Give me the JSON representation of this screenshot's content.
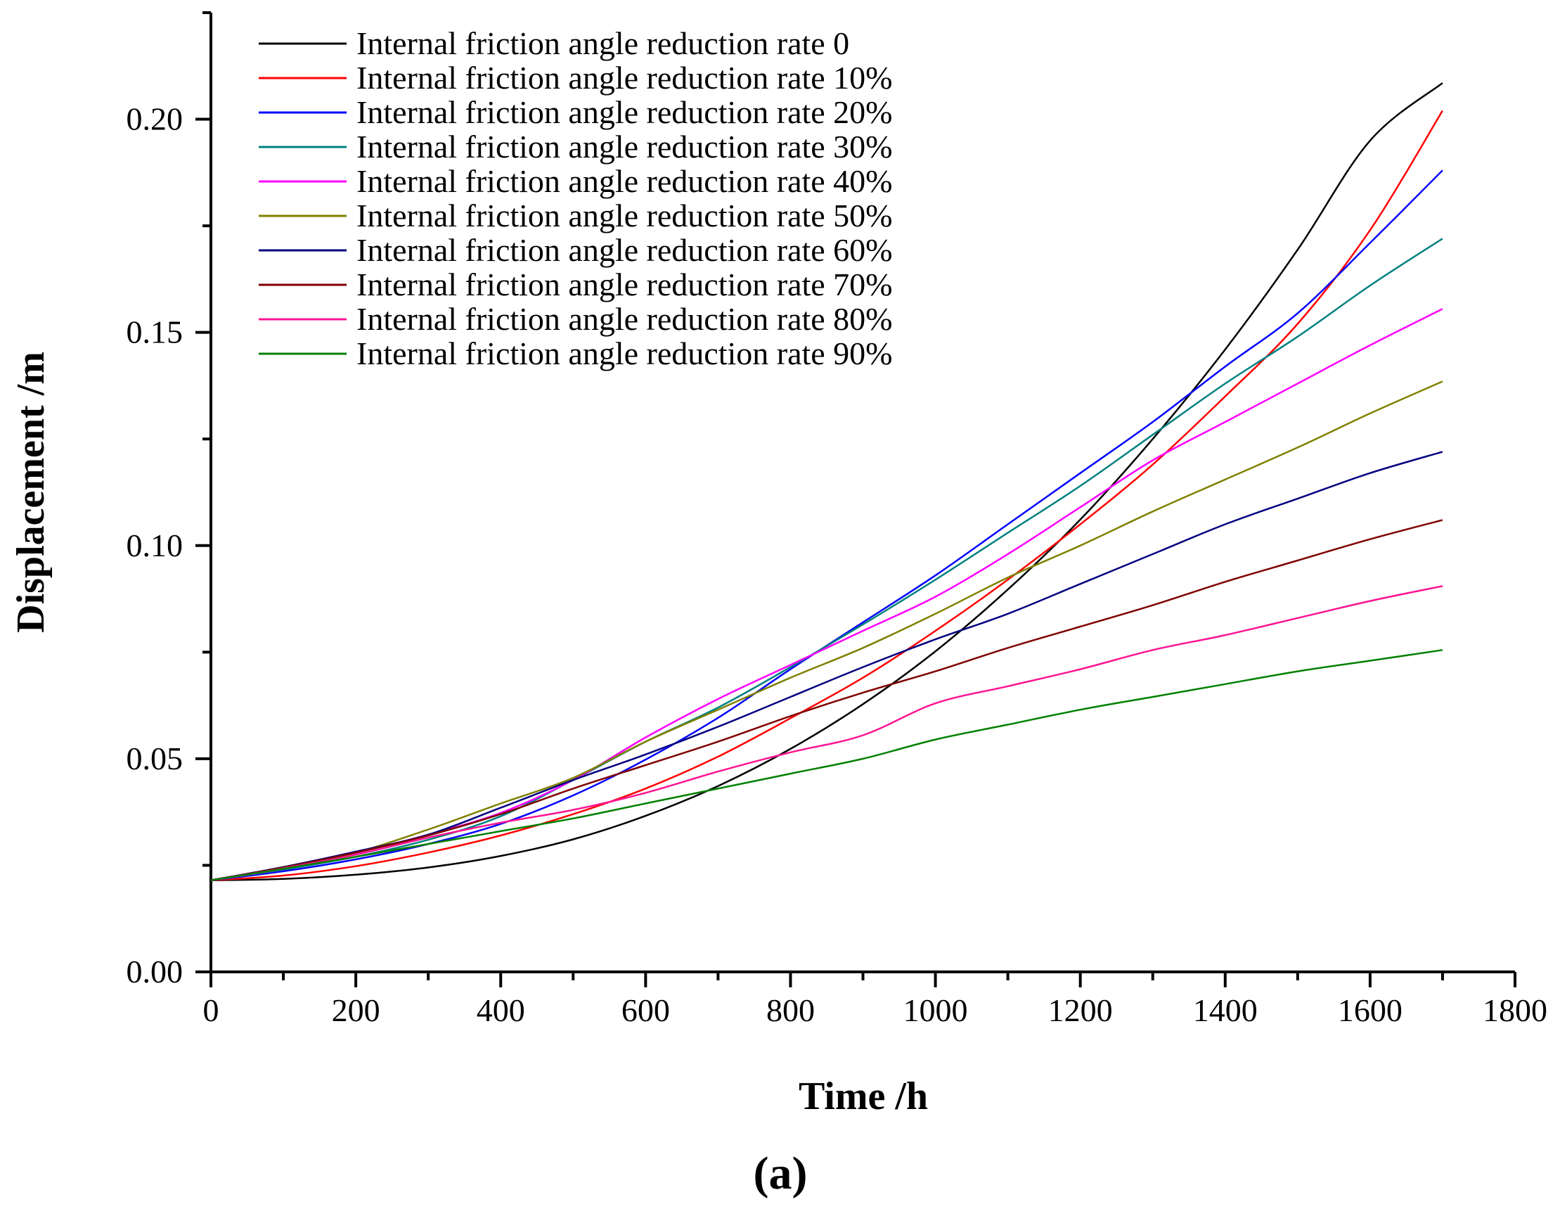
{
  "chart_data": {
    "type": "line",
    "title": "",
    "xlabel": "Time /h",
    "ylabel": "Displacement /m",
    "panel_label": "(a)",
    "xlim": [
      0,
      1800
    ],
    "ylim": [
      0,
      0.225
    ],
    "xticks": [
      0,
      200,
      400,
      600,
      800,
      1000,
      1200,
      1400,
      1600,
      1800
    ],
    "yticks": [
      0.0,
      0.05,
      0.1,
      0.15,
      0.2
    ],
    "ytick_labels": [
      "0.00",
      "0.05",
      "0.10",
      "0.15",
      "0.20"
    ],
    "legend_position": "top-left",
    "x": [
      0,
      100,
      200,
      300,
      400,
      500,
      600,
      700,
      800,
      900,
      1000,
      1100,
      1200,
      1300,
      1400,
      1500,
      1600,
      1700
    ],
    "series": [
      {
        "name": "Internal friction angle reduction rate 0",
        "color": "#000000",
        "values": [
          0.0215,
          0.0218,
          0.0228,
          0.0245,
          0.0272,
          0.0311,
          0.0366,
          0.0436,
          0.0523,
          0.0628,
          0.0752,
          0.0897,
          0.1061,
          0.125,
          0.146,
          0.1694,
          0.195,
          0.2085
        ]
      },
      {
        "name": "Internal friction angle reduction rate 10%",
        "color": "#ff0000",
        "values": [
          0.0215,
          0.0226,
          0.0248,
          0.028,
          0.032,
          0.037,
          0.043,
          0.0505,
          0.0595,
          0.069,
          0.08,
          0.092,
          0.105,
          0.119,
          0.135,
          0.152,
          0.174,
          0.202
        ]
      },
      {
        "name": "Internal friction angle reduction rate 20%",
        "color": "#0000ff",
        "values": [
          0.0215,
          0.0236,
          0.0264,
          0.03,
          0.0347,
          0.0414,
          0.0498,
          0.0596,
          0.071,
          0.082,
          0.093,
          0.105,
          0.117,
          0.129,
          0.142,
          0.1545,
          0.171,
          0.188
        ]
      },
      {
        "name": "Internal friction angle reduction rate 30%",
        "color": "#008080",
        "values": [
          0.0215,
          0.024,
          0.027,
          0.031,
          0.0365,
          0.045,
          0.054,
          0.062,
          0.0715,
          0.0815,
          0.092,
          0.103,
          0.114,
          0.126,
          0.138,
          0.149,
          0.161,
          0.172
        ]
      },
      {
        "name": "Internal friction angle reduction rate 40%",
        "color": "#ff00ff",
        "values": [
          0.0215,
          0.0242,
          0.0279,
          0.0322,
          0.0373,
          0.045,
          0.055,
          0.064,
          0.072,
          0.08,
          0.088,
          0.098,
          0.109,
          0.12,
          0.129,
          0.138,
          0.147,
          0.1555
        ]
      },
      {
        "name": "Internal friction angle reduction rate 50%",
        "color": "#808000",
        "values": [
          0.0215,
          0.0245,
          0.028,
          0.0334,
          0.0395,
          0.0455,
          0.054,
          0.0615,
          0.069,
          0.076,
          0.084,
          0.0925,
          0.1,
          0.108,
          0.1155,
          0.123,
          0.131,
          0.1385
        ]
      },
      {
        "name": "Internal friction angle reduction rate 60%",
        "color": "#000080",
        "values": [
          0.0215,
          0.0246,
          0.0282,
          0.0322,
          0.0385,
          0.045,
          0.051,
          0.0575,
          0.0645,
          0.0715,
          0.078,
          0.084,
          0.091,
          0.098,
          0.105,
          0.111,
          0.117,
          0.122
        ]
      },
      {
        "name": "Internal friction angle reduction rate 70%",
        "color": "#800000",
        "values": [
          0.0215,
          0.0245,
          0.028,
          0.032,
          0.037,
          0.043,
          0.0485,
          0.054,
          0.06,
          0.0655,
          0.0705,
          0.076,
          0.081,
          0.086,
          0.0915,
          0.0965,
          0.1015,
          0.106
        ]
      },
      {
        "name": "Internal friction angle reduction rate 80%",
        "color": "#ff1493",
        "values": [
          0.0215,
          0.0243,
          0.0275,
          0.0315,
          0.035,
          0.038,
          0.042,
          0.047,
          0.0515,
          0.0555,
          0.063,
          0.067,
          0.071,
          0.0755,
          0.079,
          0.083,
          0.087,
          0.0905
        ]
      },
      {
        "name": "Internal friction angle reduction rate 90%",
        "color": "#008000",
        "values": [
          0.0215,
          0.0242,
          0.027,
          0.03,
          0.033,
          0.036,
          0.0395,
          0.043,
          0.0465,
          0.05,
          0.0545,
          0.058,
          0.0615,
          0.0645,
          0.0675,
          0.0705,
          0.073,
          0.0755
        ]
      }
    ]
  }
}
